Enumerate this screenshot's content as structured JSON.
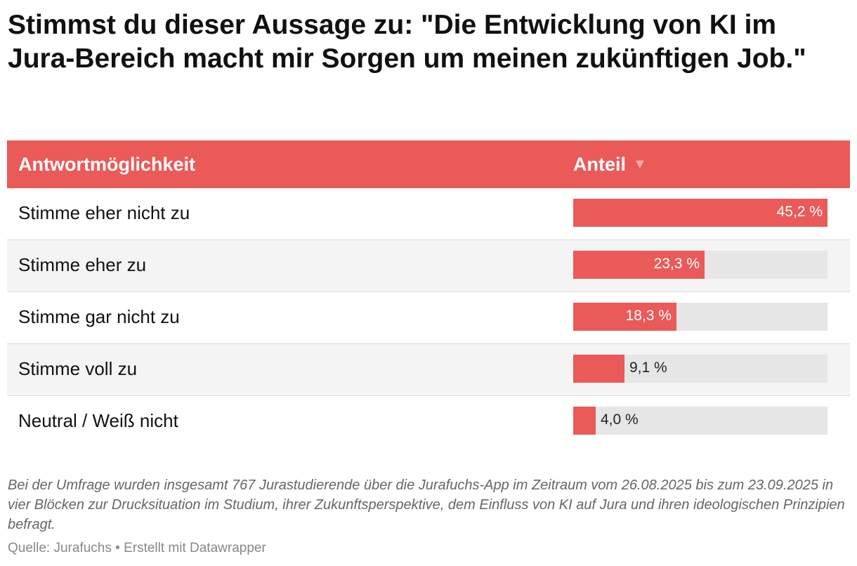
{
  "title": "Stimmst du dieser Aussage zu: \"Die Entwicklung von KI im Jura-Bereich macht mir Sorgen um meinen zukünftigen Job.\"",
  "header": {
    "answer_label": "Antwortmöglichkeit",
    "share_label": "Anteil",
    "sort_icon": "sort-down-triangle"
  },
  "colors": {
    "accent": "#ea5a58",
    "track": "#e6e6e6"
  },
  "chart_data": {
    "type": "table",
    "columns": [
      "Antwortmöglichkeit",
      "Anteil"
    ],
    "rows": [
      {
        "label": "Stimme eher nicht zu",
        "value": 45.2,
        "display": "45,2 %"
      },
      {
        "label": "Stimme eher zu",
        "value": 23.3,
        "display": "23,3 %"
      },
      {
        "label": "Stimme gar nicht zu",
        "value": 18.3,
        "display": "18,3 %"
      },
      {
        "label": "Stimme voll zu",
        "value": 9.1,
        "display": "9,1 %"
      },
      {
        "label": "Neutral / Weiß nicht",
        "value": 4.0,
        "display": "4,0 %"
      }
    ],
    "max_value": 45.2
  },
  "note": "Bei der Umfrage wurden insgesamt 767 Jurastudierende über die Jurafuchs-App im Zeitraum vom 26.08.2025 bis zum 23.09.2025 in vier Blöcken zur Drucksituation im Studium, ihrer Zukunftsperspektive, dem Einfluss von KI auf Jura und ihren ideologischen Prinzipien befragt.",
  "source": "Quelle: Jurafuchs • Erstellt mit Datawrapper"
}
